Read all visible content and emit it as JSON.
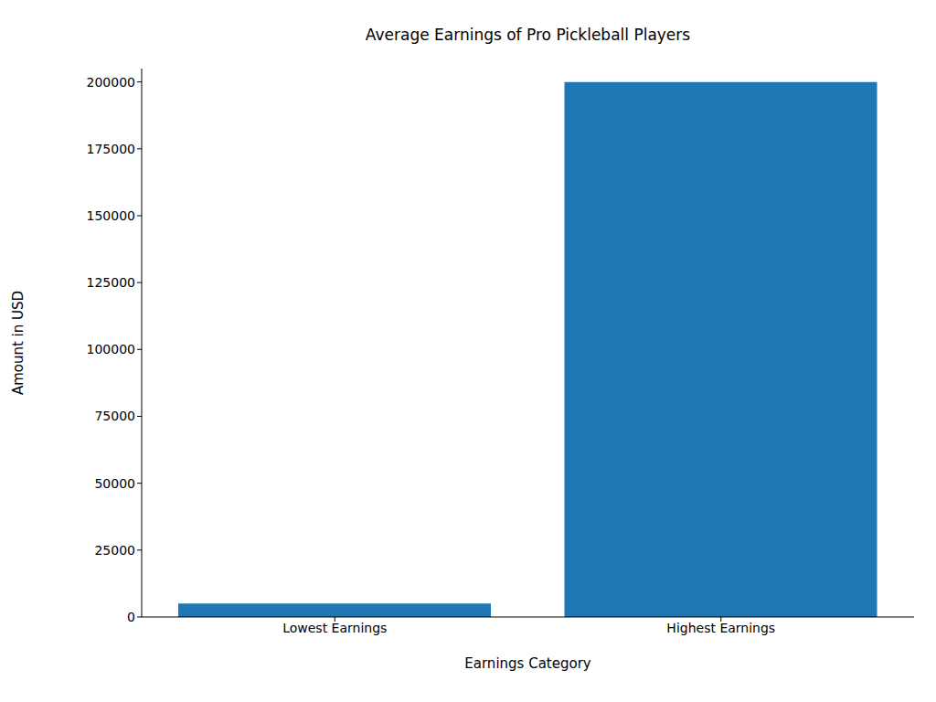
{
  "chart_data": {
    "type": "bar",
    "title": "Average Earnings of Pro Pickleball Players",
    "x_label": "Earnings Category",
    "y_label": "Amount in USD",
    "categories": [
      "Lowest Earnings",
      "Highest Earnings"
    ],
    "values": [
      5000,
      200000
    ],
    "color": "#1f77b4",
    "ylim": [
      0,
      205000
    ],
    "yticks": [
      0,
      25000,
      50000,
      75000,
      100000,
      125000,
      150000,
      175000,
      200000
    ],
    "grid": false
  }
}
